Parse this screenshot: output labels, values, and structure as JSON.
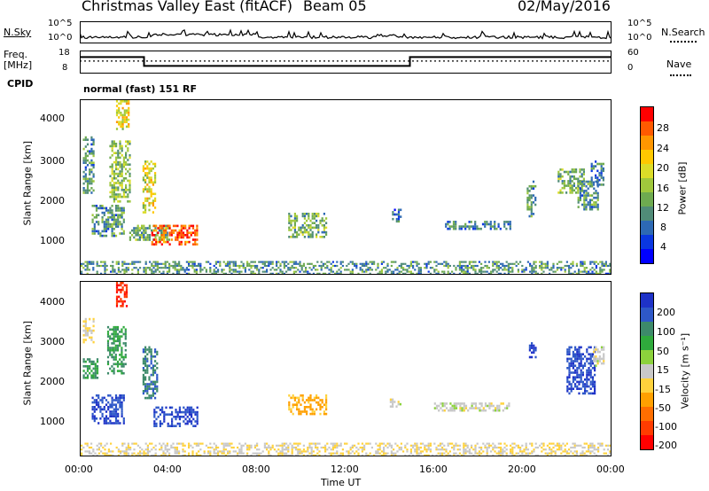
{
  "header": {
    "station": "Christmas Valley East (fitACF)",
    "beam": "Beam 05",
    "date": "02/May/2016"
  },
  "nsky_panel": {
    "left_label": "N.Sky",
    "right_label": "N.Search",
    "left_ticks": [
      "10^5",
      "10^0"
    ],
    "right_ticks": [
      "10^5",
      "10^0"
    ]
  },
  "freq_panel": {
    "left_label_1": "Freq.",
    "left_label_2": "[MHz]",
    "right_label": "Nave",
    "left_ticks": [
      "18",
      "8"
    ],
    "right_ticks": [
      "60",
      "0"
    ]
  },
  "cpid": {
    "label": "CPID",
    "value": "normal (fast) 151 RF"
  },
  "x_axis": {
    "label": "Time UT",
    "ticks": [
      "00:00",
      "04:00",
      "08:00",
      "12:00",
      "16:00",
      "20:00",
      "00:00"
    ]
  },
  "power_panel": {
    "ylabel": "Slant Range [km]",
    "yticks": [
      "4000",
      "3000",
      "2000",
      "1000"
    ],
    "colorbar_label": "Power [dB]",
    "colorbar_ticks": [
      "28",
      "24",
      "20",
      "16",
      "12",
      "8",
      "4"
    ],
    "colors": [
      "#ff0000",
      "#ff5a00",
      "#ff9600",
      "#ffc800",
      "#dcdc28",
      "#a0c83c",
      "#6eaa50",
      "#508c78",
      "#2d69b4",
      "#0a37e1",
      "#0000ff"
    ]
  },
  "velocity_panel": {
    "ylabel": "Slant Range [km]",
    "yticks": [
      "4000",
      "3000",
      "2000",
      "1000"
    ],
    "colorbar_label": "Velocity [m s⁻¹]",
    "colorbar_ticks": [
      "200",
      "100",
      "50",
      "15",
      "-15",
      "-50",
      "-100",
      "-200"
    ],
    "colors": [
      "#1e32c8",
      "#2e58c8",
      "#3d8a6a",
      "#2faa3c",
      "#8cd23c",
      "#c8c8c8",
      "#ffd23c",
      "#ffa000",
      "#ff6e00",
      "#ff3c00",
      "#ff0000"
    ]
  },
  "chart_data": {
    "type": "heatmap",
    "x_range_hours": [
      0,
      24
    ],
    "y_range_km": [
      180,
      4500
    ],
    "frequency_mhz": {
      "segments": [
        {
          "start": 0.0,
          "end": 2.9,
          "value": 15.8
        },
        {
          "start": 2.9,
          "end": 14.9,
          "value": 10.8
        },
        {
          "start": 14.9,
          "end": 24.0,
          "value": 15.8
        }
      ]
    },
    "nave_dotted_level": 33,
    "power_regions": [
      {
        "t": [
          0.1,
          0.6
        ],
        "r": [
          2200,
          3600
        ],
        "db": 10
      },
      {
        "t": [
          0.5,
          2.0
        ],
        "r": [
          1100,
          1900
        ],
        "db": 10
      },
      {
        "t": [
          1.3,
          2.2
        ],
        "r": [
          2000,
          3500
        ],
        "db": 14
      },
      {
        "t": [
          1.6,
          2.2
        ],
        "r": [
          3800,
          4500
        ],
        "db": 18
      },
      {
        "t": [
          2.8,
          3.4
        ],
        "r": [
          1700,
          3000
        ],
        "db": 18
      },
      {
        "t": [
          2.2,
          4.0
        ],
        "r": [
          1000,
          1400
        ],
        "db": 12
      },
      {
        "t": [
          3.2,
          5.3
        ],
        "r": [
          900,
          1400
        ],
        "db": 26
      },
      {
        "t": [
          9.4,
          11.1
        ],
        "r": [
          1100,
          1700
        ],
        "db": 12
      },
      {
        "t": [
          14.1,
          14.5
        ],
        "r": [
          1500,
          1800
        ],
        "db": 6
      },
      {
        "t": [
          16.5,
          19.5
        ],
        "r": [
          1300,
          1500
        ],
        "db": 8
      },
      {
        "t": [
          20.2,
          20.6
        ],
        "r": [
          1600,
          2500
        ],
        "db": 10
      },
      {
        "t": [
          21.6,
          22.8
        ],
        "r": [
          2200,
          2800
        ],
        "db": 12
      },
      {
        "t": [
          22.5,
          23.4
        ],
        "r": [
          1800,
          2500
        ],
        "db": 10
      },
      {
        "t": [
          23.1,
          23.7
        ],
        "r": [
          2400,
          3000
        ],
        "db": 8
      },
      {
        "t": [
          0.0,
          24.0
        ],
        "r": [
          180,
          500
        ],
        "db": 10
      }
    ],
    "velocity_regions": [
      {
        "t": [
          0.1,
          0.6
        ],
        "r": [
          3000,
          3600
        ],
        "v": -30
      },
      {
        "t": [
          0.1,
          0.8
        ],
        "r": [
          2100,
          2600
        ],
        "v": 120
      },
      {
        "t": [
          0.5,
          2.0
        ],
        "r": [
          1000,
          1700
        ],
        "v": 200
      },
      {
        "t": [
          1.2,
          2.0
        ],
        "r": [
          2200,
          3400
        ],
        "v": 120
      },
      {
        "t": [
          1.6,
          2.1
        ],
        "r": [
          3900,
          4500
        ],
        "v": -200
      },
      {
        "t": [
          2.8,
          3.5
        ],
        "r": [
          1600,
          2900
        ],
        "v": 150
      },
      {
        "t": [
          3.3,
          5.3
        ],
        "r": [
          900,
          1400
        ],
        "v": 200
      },
      {
        "t": [
          9.4,
          11.1
        ],
        "r": [
          1200,
          1700
        ],
        "v": -80
      },
      {
        "t": [
          14.0,
          14.5
        ],
        "r": [
          1400,
          1600
        ],
        "v": 0
      },
      {
        "t": [
          16.0,
          19.5
        ],
        "r": [
          1300,
          1500
        ],
        "v": 0
      },
      {
        "t": [
          20.3,
          20.6
        ],
        "r": [
          2600,
          3000
        ],
        "v": 200
      },
      {
        "t": [
          22.0,
          23.3
        ],
        "r": [
          1700,
          2900
        ],
        "v": 200
      },
      {
        "t": [
          23.2,
          23.7
        ],
        "r": [
          2400,
          2900
        ],
        "v": 0
      },
      {
        "t": [
          0.0,
          24.0
        ],
        "r": [
          180,
          500
        ],
        "v": -20
      }
    ]
  }
}
